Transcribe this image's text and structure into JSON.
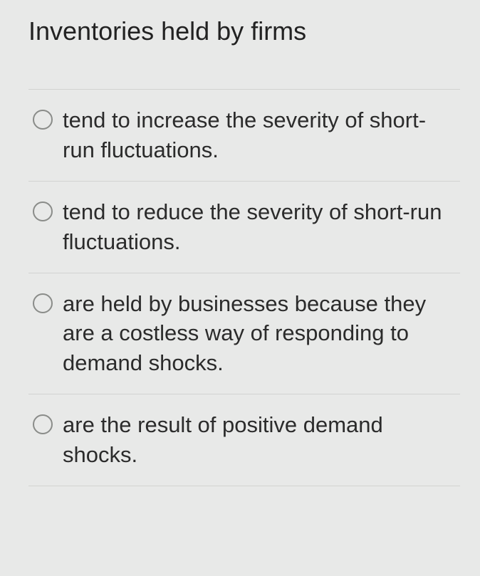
{
  "question": {
    "title": "Inventories held by firms",
    "options": [
      {
        "text": "tend to increase the severity of short-run fluctuations."
      },
      {
        "text": "tend to reduce the severity of short-run fluctuations."
      },
      {
        "text": "are held by businesses because they are a costless way of responding to demand shocks."
      },
      {
        "text": "are the result of positive demand shocks."
      }
    ]
  },
  "style": {
    "background_color": "#e8e9e8",
    "text_color": "#2b2b2b",
    "divider_color": "#d2d3d1",
    "radio_border_color": "#8a8c89",
    "title_fontsize": 36,
    "option_fontsize": 31,
    "font_family": "Segoe UI"
  }
}
